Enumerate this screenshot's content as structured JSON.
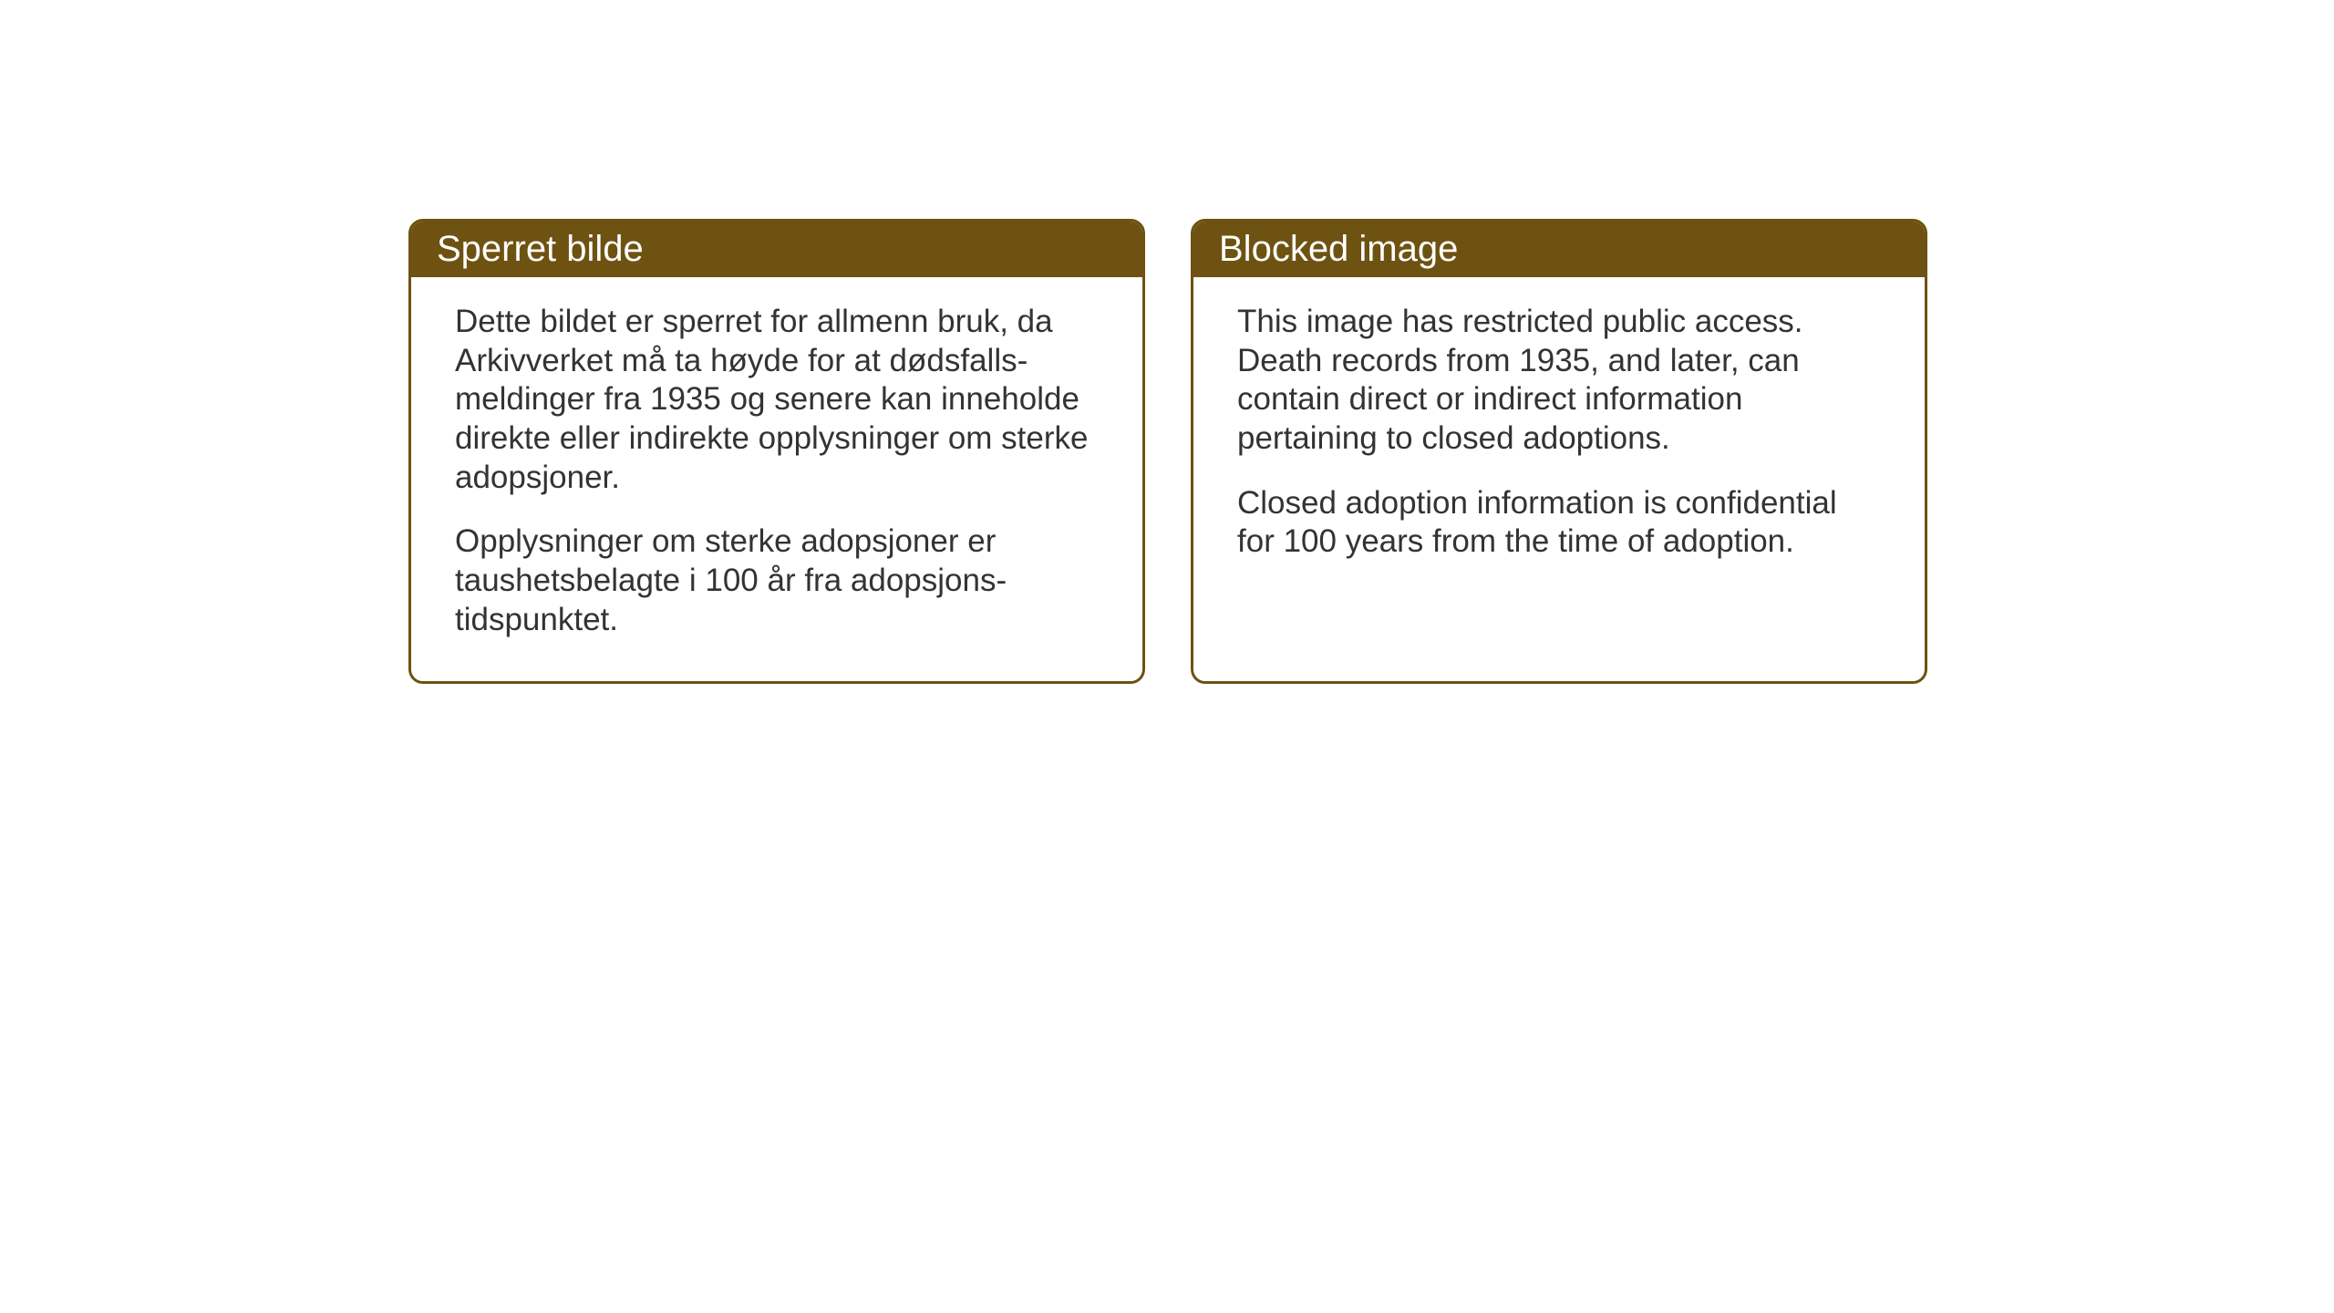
{
  "notices": {
    "norwegian": {
      "title": "Sperret bilde",
      "paragraph1": "Dette bildet er sperret for allmenn bruk, da Arkivverket må ta høyde for at dødsfalls-meldinger fra 1935 og senere kan inneholde direkte eller indirekte opplysninger om sterke adopsjoner.",
      "paragraph2": "Opplysninger om sterke adopsjoner er taushetsbelagte i 100 år fra adopsjons-tidspunktet."
    },
    "english": {
      "title": "Blocked image",
      "paragraph1": "This image has restricted public access. Death records from 1935, and later, can contain direct or indirect information pertaining to closed adoptions.",
      "paragraph2": "Closed adoption information is confidential for 100 years from the time of adoption."
    }
  },
  "styling": {
    "header_bg_color": "#6e5211",
    "header_text_color": "#ffffff",
    "border_color": "#6e5211",
    "body_text_color": "#333333",
    "card_bg_color": "#ffffff",
    "page_bg_color": "#ffffff",
    "title_fontsize": 40,
    "body_fontsize": 35,
    "border_radius": 16,
    "border_width": 3
  }
}
